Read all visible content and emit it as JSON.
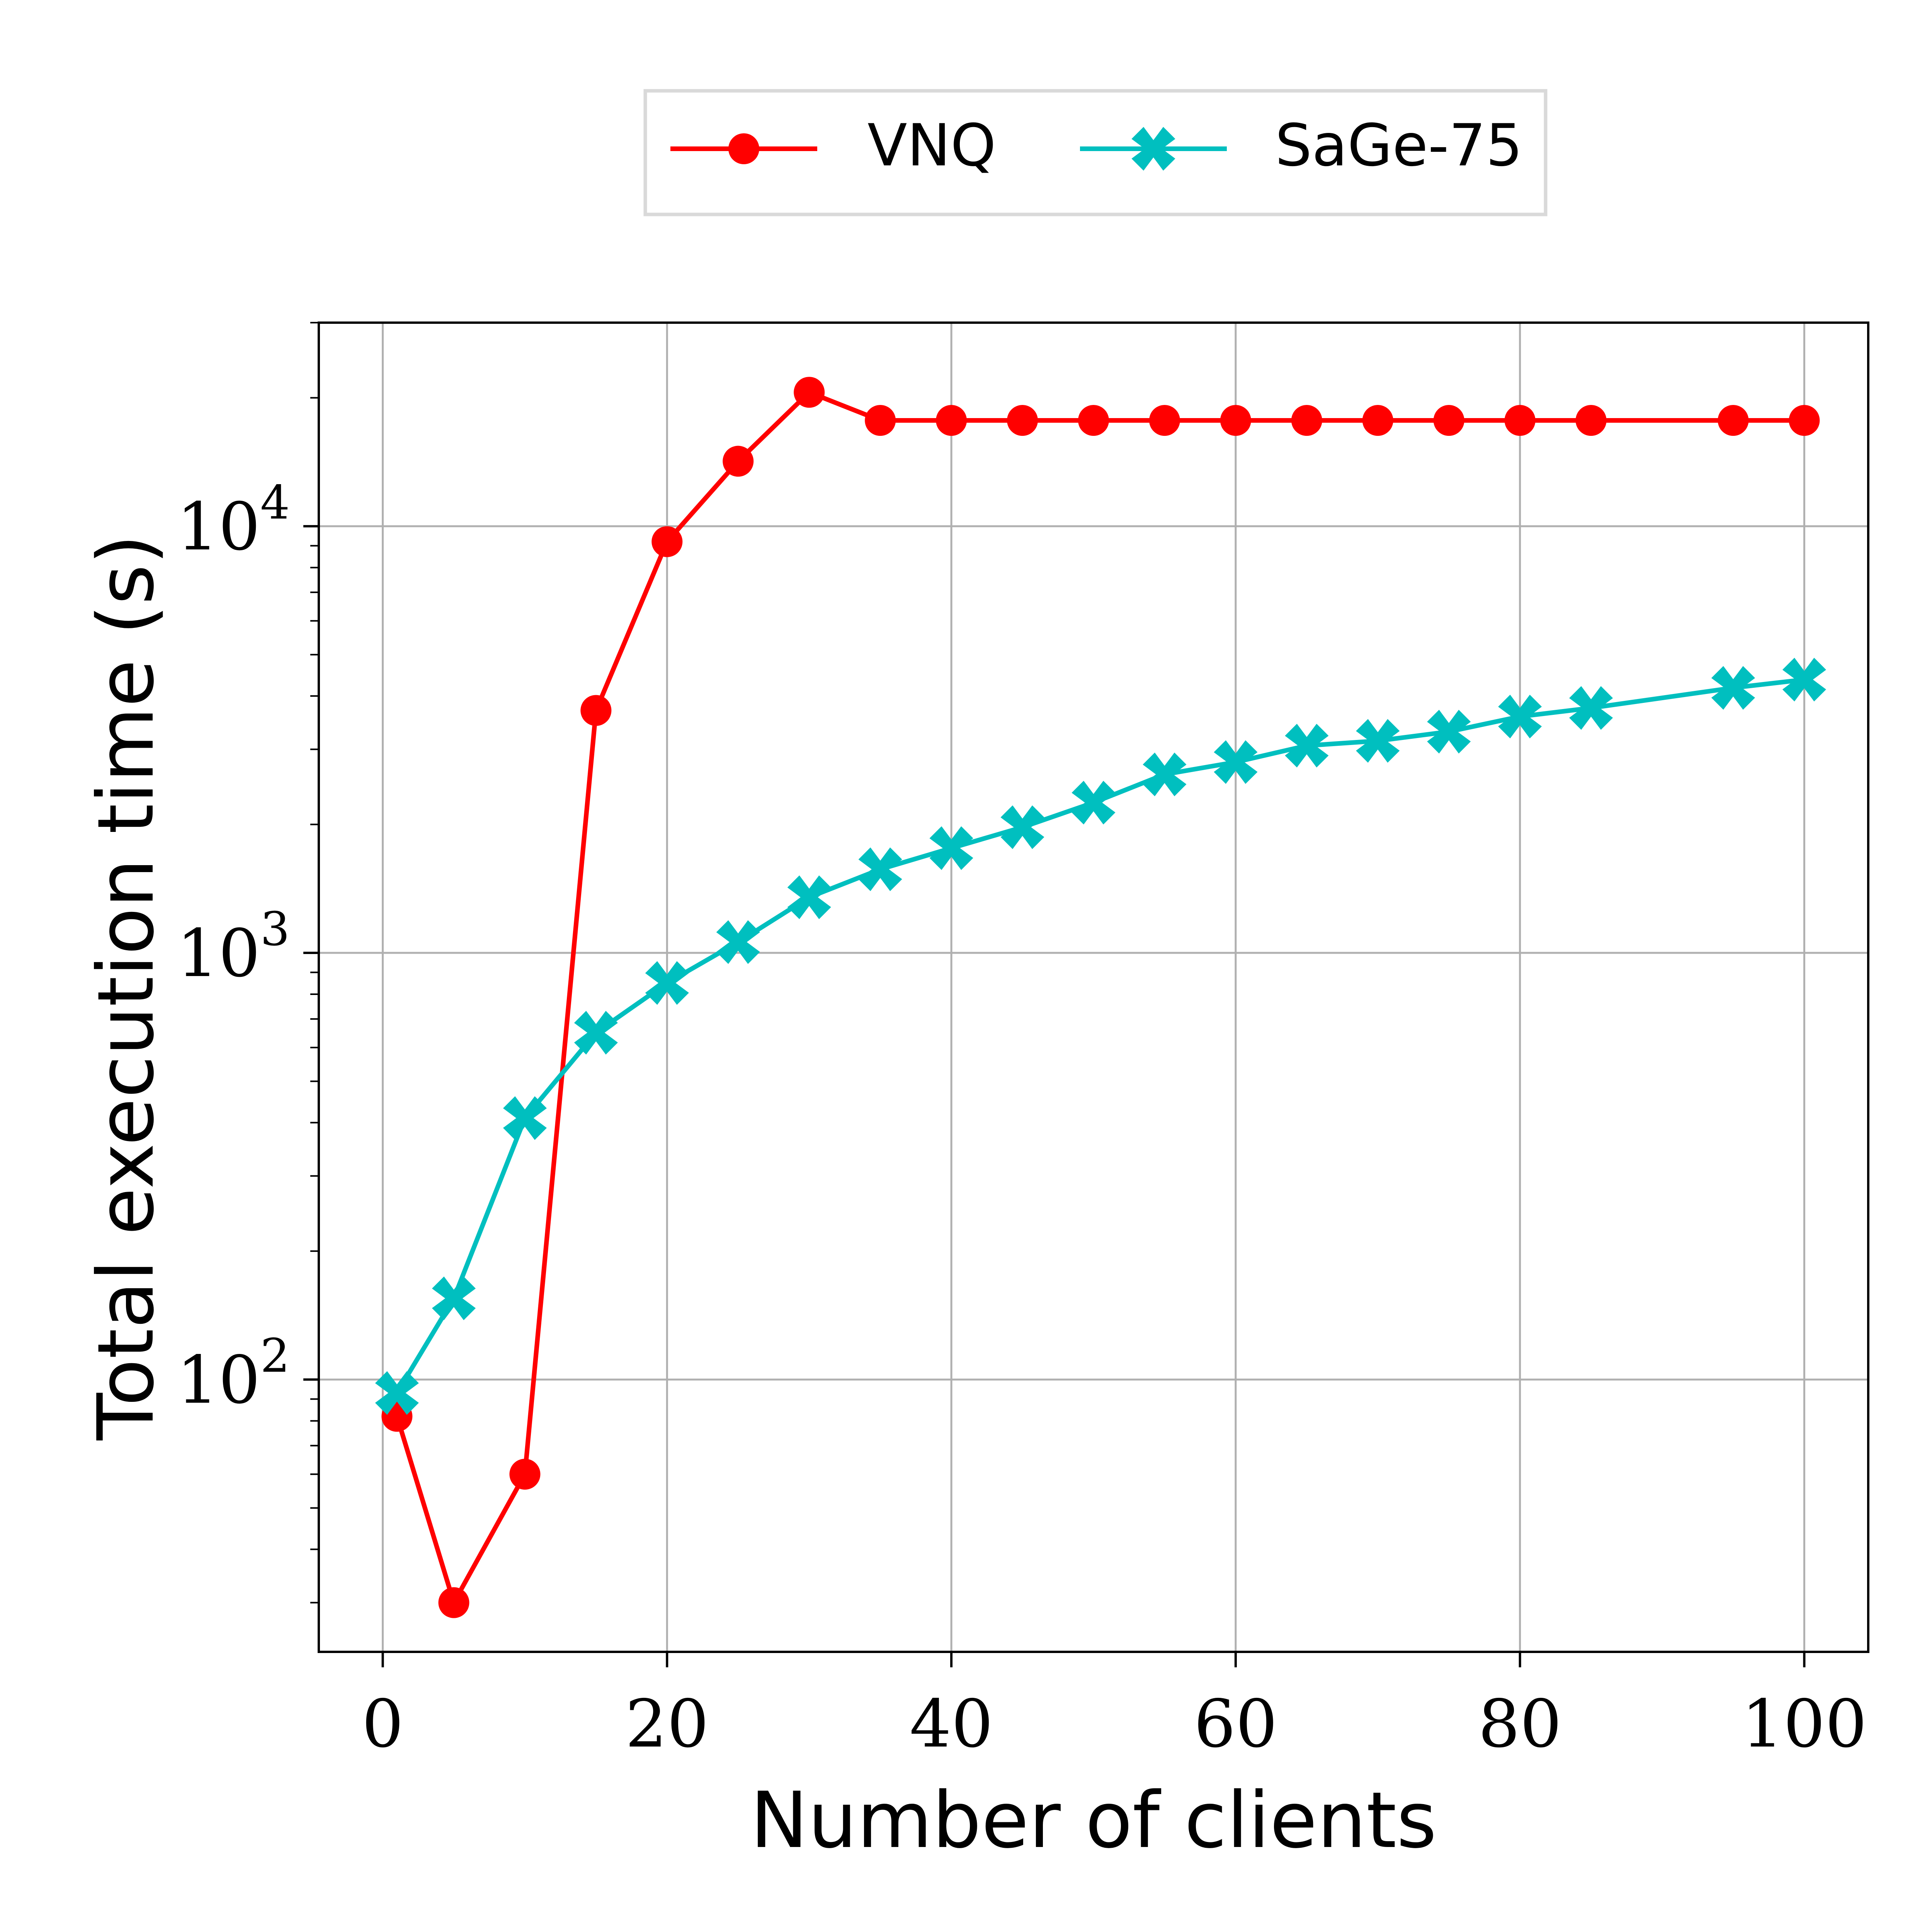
{
  "colors": {
    "vnq": "#ff0000",
    "sage": "#00bfbf",
    "grid": "#b0b0b0",
    "axis": "#000000",
    "legend_border": "#d9d9d9"
  },
  "chart_data": {
    "type": "line",
    "xlabel": "Number of clients",
    "ylabel": "Total execution time (s)",
    "xlim": [
      -4.5,
      104.5
    ],
    "ylim": [
      23,
      30000
    ],
    "yscale": "log",
    "grid": true,
    "legend_position": "top-center, above plot",
    "x_ticks": [
      0,
      20,
      40,
      60,
      80,
      100
    ],
    "x_tick_labels": [
      "0",
      "20",
      "40",
      "60",
      "80",
      "100"
    ],
    "y_ticks": [
      100,
      1000,
      10000
    ],
    "y_tick_labels": [
      {
        "base": "10",
        "exp": "2"
      },
      {
        "base": "10",
        "exp": "3"
      },
      {
        "base": "10",
        "exp": "4"
      }
    ],
    "series": [
      {
        "name": "VNQ",
        "color": "#ff0000",
        "marker": "circle",
        "x": [
          1,
          5,
          10,
          15,
          20,
          25,
          30,
          35,
          40,
          45,
          50,
          55,
          60,
          65,
          70,
          75,
          80,
          85,
          95,
          100
        ],
        "y": [
          82,
          30,
          60,
          3700,
          9200,
          14200,
          20600,
          17700,
          17700,
          17700,
          17700,
          17700,
          17700,
          17700,
          17700,
          17700,
          17700,
          17700,
          17700,
          17700
        ]
      },
      {
        "name": "SaGe-75",
        "color": "#00bfbf",
        "marker": "x-filled",
        "x": [
          1,
          5,
          10,
          15,
          20,
          25,
          30,
          35,
          40,
          45,
          50,
          55,
          60,
          65,
          70,
          75,
          80,
          85,
          95,
          100
        ],
        "y": [
          93,
          155,
          410,
          650,
          850,
          1060,
          1350,
          1570,
          1760,
          1970,
          2250,
          2620,
          2800,
          3060,
          3140,
          3300,
          3580,
          3750,
          4180,
          4370
        ]
      }
    ]
  }
}
